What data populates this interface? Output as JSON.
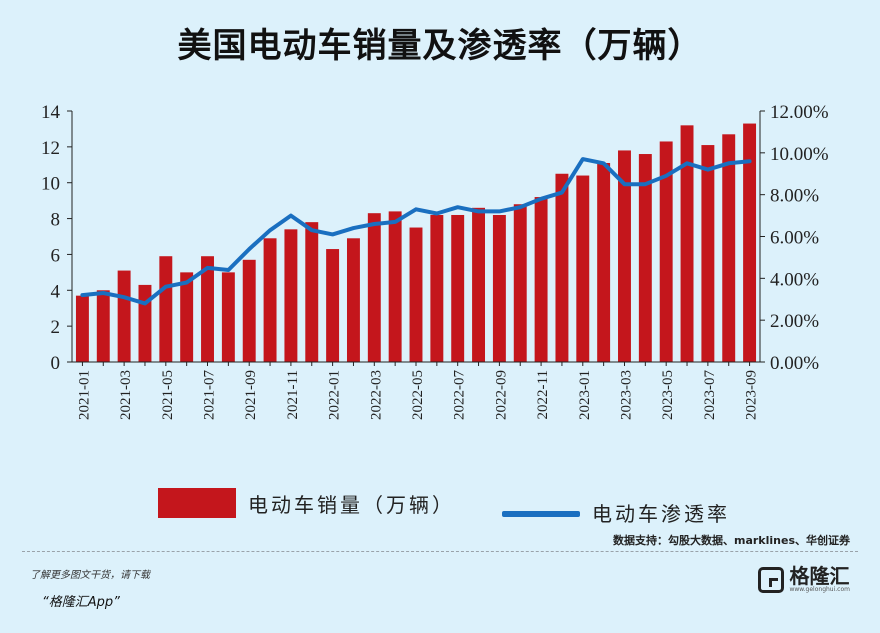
{
  "page": {
    "title": "美国电动车销量及渗透率（万辆）"
  },
  "legend": {
    "bar_label": "电动车销量（万辆）",
    "line_label": "电动车渗透率"
  },
  "source": "数据支持：勾股大数据、marklines、华创证券",
  "footer": {
    "promo_line": "了解更多图文干货，请下载",
    "promo_app": "“格隆汇App”",
    "brand_name": "格隆汇",
    "brand_url": "www.gelonghui.com"
  },
  "colors": {
    "bar": "#c4161c",
    "line": "#1a6fc0",
    "background": "#dcf1fb"
  },
  "chart_data": {
    "type": "bar",
    "title": "美国电动车销量及渗透率（万辆）",
    "categories": [
      "2021-01",
      "2021-02",
      "2021-03",
      "2021-04",
      "2021-05",
      "2021-06",
      "2021-07",
      "2021-08",
      "2021-09",
      "2021-10",
      "2021-11",
      "2021-12",
      "2022-01",
      "2022-02",
      "2022-03",
      "2022-04",
      "2022-05",
      "2022-06",
      "2022-07",
      "2022-08",
      "2022-09",
      "2022-10",
      "2022-11",
      "2022-12",
      "2023-01",
      "2023-02",
      "2023-03",
      "2023-04",
      "2023-05",
      "2023-06",
      "2023-07",
      "2023-08",
      "2023-09"
    ],
    "tick_labels": [
      "2021-01",
      "2021-03",
      "2021-05",
      "2021-07",
      "2021-09",
      "2021-11",
      "2022-01",
      "2022-03",
      "2022-05",
      "2022-07",
      "2022-09",
      "2022-11",
      "2023-01",
      "2023-03",
      "2023-05",
      "2023-07",
      "2023-09"
    ],
    "series": [
      {
        "name": "电动车销量（万辆）",
        "type": "bar",
        "axis": "left",
        "values": [
          3.7,
          4.0,
          5.1,
          4.3,
          5.9,
          5.0,
          5.9,
          5.0,
          5.7,
          6.9,
          7.4,
          7.8,
          6.3,
          6.9,
          8.3,
          8.4,
          7.5,
          8.2,
          8.2,
          8.6,
          8.2,
          8.8,
          9.2,
          10.5,
          10.4,
          11.1,
          11.8,
          11.6,
          12.3,
          13.2,
          12.1,
          12.7,
          13.3
        ]
      },
      {
        "name": "电动车渗透率",
        "type": "line",
        "axis": "right",
        "values": [
          3.2,
          3.3,
          3.1,
          2.8,
          3.6,
          3.8,
          4.5,
          4.4,
          5.4,
          6.3,
          7.0,
          6.3,
          6.1,
          6.4,
          6.6,
          6.7,
          7.3,
          7.1,
          7.4,
          7.2,
          7.2,
          7.4,
          7.8,
          8.1,
          9.7,
          9.5,
          8.5,
          8.5,
          8.9,
          9.5,
          9.2,
          9.5,
          9.6
        ]
      }
    ],
    "y_left": {
      "min": 0,
      "max": 14,
      "ticks": [
        "0",
        "2",
        "4",
        "6",
        "8",
        "10",
        "12",
        "14"
      ]
    },
    "y_right": {
      "min": 0,
      "max": 12,
      "ticks": [
        "0.00%",
        "2.00%",
        "4.00%",
        "6.00%",
        "8.00%",
        "10.00%",
        "12.00%"
      ]
    },
    "grid": false,
    "legend_position": "bottom"
  }
}
